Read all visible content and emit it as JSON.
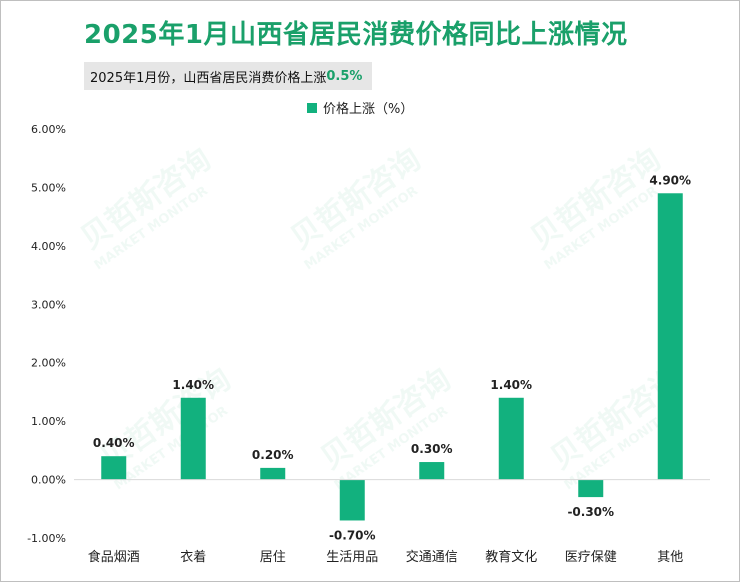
{
  "title": "2025年1月山西省居民消费价格同比上涨情况",
  "subtitle": {
    "text": "2025年1月份，山西省居民消费价格上涨",
    "highlight": "0.5%"
  },
  "legend_label": "价格上涨（%）",
  "watermark": {
    "cn": "贝哲斯咨询",
    "en": "MARKET MONITOR"
  },
  "colors": {
    "bar": "#12b17e",
    "title": "#1aa06a"
  },
  "chart_data": {
    "type": "bar",
    "title": "2025年1月山西省居民消费价格同比上涨情况",
    "categories": [
      "食品烟酒",
      "衣着",
      "居住",
      "生活用品",
      "交通通信",
      "教育文化",
      "医疗保健",
      "其他"
    ],
    "series": [
      {
        "name": "价格上涨（%）",
        "values": [
          0.4,
          1.4,
          0.2,
          -0.7,
          0.3,
          1.4,
          -0.3,
          4.9
        ]
      }
    ],
    "data_labels": [
      "0.40%",
      "1.40%",
      "0.20%",
      "-0.70%",
      "0.30%",
      "1.40%",
      "-0.30%",
      "4.90%"
    ],
    "y_ticks": [
      -1.0,
      0.0,
      1.0,
      2.0,
      3.0,
      4.0,
      5.0,
      6.0
    ],
    "y_tick_labels": [
      "-1.00%",
      "0.00%",
      "1.00%",
      "2.00%",
      "3.00%",
      "4.00%",
      "5.00%",
      "6.00%"
    ],
    "ylim": [
      -1.0,
      6.0
    ],
    "xlabel": "",
    "ylabel": "",
    "grid": false,
    "legend_position": "top-center"
  }
}
